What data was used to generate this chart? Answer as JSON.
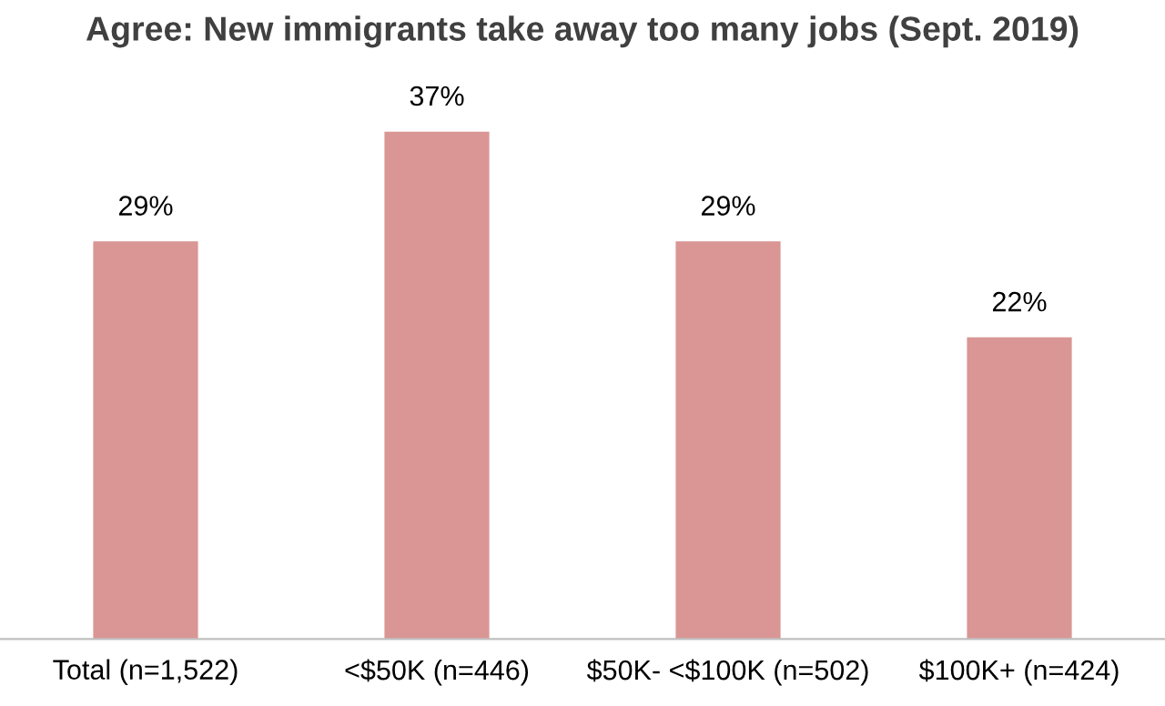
{
  "chart_data": {
    "type": "bar",
    "title": "Agree: New immigrants take away too many jobs (Sept. 2019)",
    "categories": [
      "Total (n=1,522)",
      "<$50K (n=446)",
      "$50K- <$100K (n=502)",
      "$100K+ (n=424)"
    ],
    "values": [
      29,
      37,
      29,
      22
    ],
    "value_labels": [
      "29%",
      "37%",
      "29%",
      "22%"
    ],
    "color": "#d99694"
  }
}
